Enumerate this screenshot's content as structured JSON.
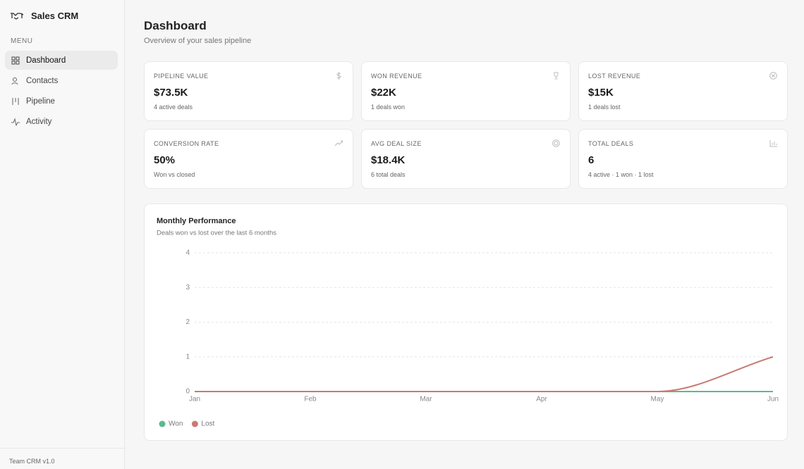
{
  "sidebar": {
    "brand": "Sales CRM",
    "menu_label": "MENU",
    "nav": [
      "Dashboard",
      "Contacts",
      "Pipeline",
      "Activity"
    ],
    "footer": "Team CRM v1.0"
  },
  "header": {
    "title": "Dashboard",
    "subtitle": "Overview of your sales pipeline"
  },
  "cards": [
    {
      "label": "PIPELINE VALUE",
      "value": "$73.5K",
      "note": "4 active deals"
    },
    {
      "label": "WON REVENUE",
      "value": "$22K",
      "note": "1 deals won"
    },
    {
      "label": "LOST REVENUE",
      "value": "$15K",
      "note": "1 deals lost"
    },
    {
      "label": "CONVERSION RATE",
      "value": "50%",
      "note": "Won vs closed"
    },
    {
      "label": "AVG DEAL SIZE",
      "value": "$18.4K",
      "note": "6 total deals"
    },
    {
      "label": "TOTAL DEALS",
      "value": "6",
      "note": "4 active · 1 won · 1 lost"
    }
  ],
  "chart_data": {
    "type": "line",
    "title": "Monthly Performance",
    "subtitle": "Deals won vs lost over the last 6 months",
    "categories": [
      "Jan",
      "Feb",
      "Mar",
      "Apr",
      "May",
      "Jun"
    ],
    "series": [
      {
        "name": "Won",
        "color": "#5cb98d",
        "values": [
          0,
          0,
          0,
          0,
          0,
          0
        ]
      },
      {
        "name": "Lost",
        "color": "#c97a72",
        "values": [
          0,
          0,
          0,
          0,
          0,
          1
        ]
      }
    ],
    "ylim": [
      0,
      4
    ],
    "yticks": [
      0,
      1,
      2,
      3,
      4
    ],
    "grid": true,
    "legend": "bottom-left"
  }
}
